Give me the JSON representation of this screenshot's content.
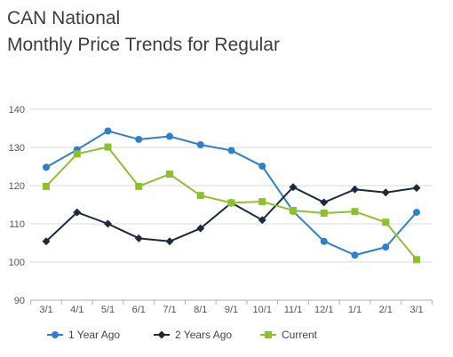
{
  "title": {
    "line1": "CAN National",
    "line2": "Monthly Price Trends for Regular"
  },
  "chart_data": {
    "type": "line",
    "categories": [
      "3/1",
      "4/1",
      "5/1",
      "6/1",
      "7/1",
      "8/1",
      "9/1",
      "10/1",
      "11/1",
      "12/1",
      "1/1",
      "2/1",
      "3/1"
    ],
    "ylim": [
      90,
      140
    ],
    "yticks": [
      90,
      100,
      110,
      120,
      130,
      140
    ],
    "grid": true,
    "legend_position": "bottom",
    "series": [
      {
        "name": "1 Year Ago",
        "color": "#2f7fd0",
        "marker": "circle",
        "values": [
          124.8,
          129.4,
          134.3,
          132.1,
          132.9,
          130.7,
          129.2,
          125.1,
          113.3,
          105.4,
          101.8,
          103.9,
          113.0
        ]
      },
      {
        "name": "2 Years Ago",
        "color": "#1b2a3d",
        "marker": "diamond",
        "values": [
          105.4,
          113.0,
          110.0,
          106.2,
          105.4,
          108.8,
          115.5,
          111.0,
          119.6,
          115.6,
          119.0,
          118.2,
          119.4
        ]
      },
      {
        "name": "Current",
        "color": "#8cc12d",
        "marker": "square",
        "values": [
          119.8,
          128.3,
          130.1,
          119.8,
          123.0,
          117.4,
          115.5,
          115.8,
          113.5,
          112.8,
          113.2,
          110.4,
          100.6
        ]
      }
    ]
  }
}
